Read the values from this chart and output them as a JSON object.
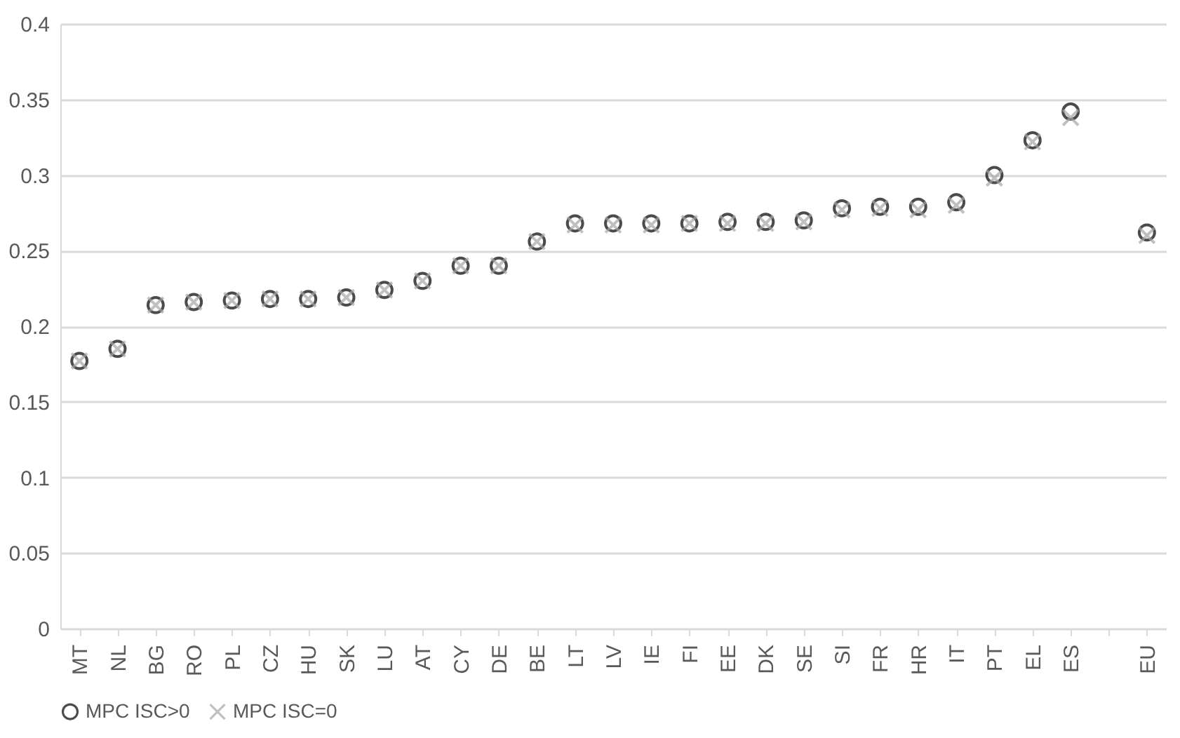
{
  "chart_data": {
    "type": "scatter",
    "categories": [
      "MT",
      "NL",
      "BG",
      "RO",
      "PL",
      "CZ",
      "HU",
      "SK",
      "LU",
      "AT",
      "CY",
      "DE",
      "BE",
      "LT",
      "LV",
      "IE",
      "FI",
      "EE",
      "DK",
      "SE",
      "SI",
      "FR",
      "HR",
      "IT",
      "PT",
      "EL",
      "ES",
      null,
      "EU"
    ],
    "series": [
      {
        "name": "MPC ISC>0",
        "color": "#000000",
        "marker": "circle",
        "values": [
          0.177,
          0.185,
          0.214,
          0.216,
          0.217,
          0.218,
          0.218,
          0.219,
          0.224,
          0.23,
          0.24,
          0.24,
          0.256,
          0.268,
          0.268,
          0.268,
          0.268,
          0.269,
          0.269,
          0.27,
          0.278,
          0.279,
          0.279,
          0.282,
          0.3,
          0.323,
          0.342,
          null,
          0.262
        ]
      },
      {
        "name": "MPC ISC=0",
        "color": "#a6a6a6",
        "marker": "cross",
        "values": [
          0.177,
          0.185,
          0.214,
          0.216,
          0.217,
          0.218,
          0.218,
          0.219,
          0.224,
          0.23,
          0.24,
          0.24,
          0.256,
          0.267,
          0.267,
          0.267,
          0.268,
          0.268,
          0.268,
          0.269,
          0.277,
          0.278,
          0.277,
          0.28,
          0.298,
          0.322,
          0.338,
          null,
          0.26
        ]
      }
    ],
    "ylim": [
      0,
      0.4
    ],
    "yticks": [
      0,
      0.05,
      0.1,
      0.15,
      0.2,
      0.25,
      0.3,
      0.35,
      0.4
    ],
    "grid": "y",
    "legend": "bottom"
  }
}
